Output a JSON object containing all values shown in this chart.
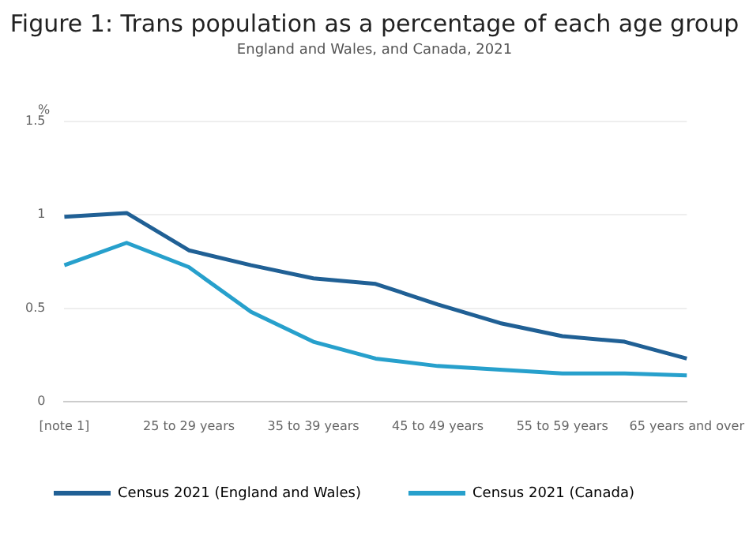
{
  "chart_data": {
    "type": "line",
    "title": "Figure 1: Trans population as a percentage of each age group",
    "subtitle": "England and Wales, and Canada, 2021",
    "ylabel": "%",
    "categories": [
      "[note 1]",
      null,
      "25 to 29 years",
      null,
      "35 to 39 years",
      null,
      "45 to 49 years",
      null,
      "55 to 59 years",
      null,
      "65 years and over"
    ],
    "series": [
      {
        "name": "Census 2021 (England and Wales)",
        "color": "#206095",
        "values": [
          0.99,
          1.01,
          0.81,
          0.73,
          0.66,
          0.63,
          0.52,
          0.42,
          0.35,
          0.32,
          0.23
        ]
      },
      {
        "name": "Census 2021 (Canada)",
        "color": "#27a0cc",
        "values": [
          0.73,
          0.85,
          0.72,
          0.48,
          0.32,
          0.23,
          0.19,
          0.17,
          0.15,
          0.15,
          0.14
        ]
      }
    ],
    "ylim": [
      0,
      1.5
    ],
    "yticks": [
      0,
      0.5,
      1,
      1.5
    ],
    "grid": "y",
    "legend": "bottom left",
    "marker": "none",
    "line_style": "solid"
  }
}
